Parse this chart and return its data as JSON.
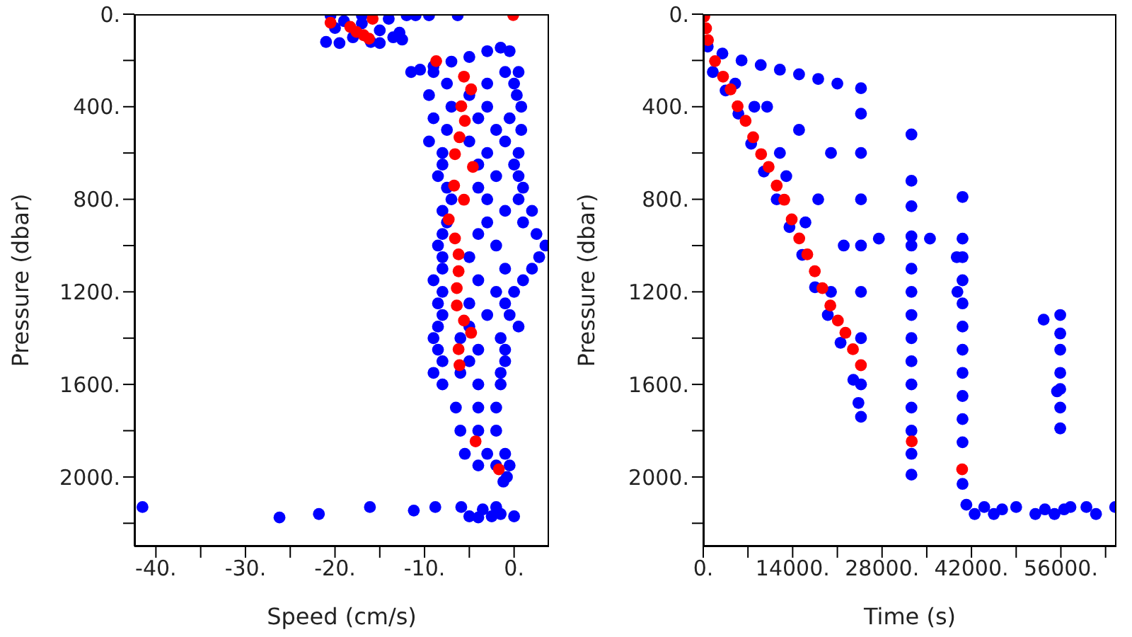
{
  "chart_data": [
    {
      "type": "scatter",
      "xlabel": "Speed (cm/s)",
      "ylabel": "Pressure (dbar)",
      "marker": "circle",
      "xlim": [
        -42.4,
        3.9
      ],
      "xticks": [
        {
          "value": -40,
          "label": "-40."
        },
        {
          "value": -35,
          "label": null
        },
        {
          "value": -30,
          "label": "-30."
        },
        {
          "value": -25,
          "label": null
        },
        {
          "value": -20,
          "label": "-20."
        },
        {
          "value": -15,
          "label": null
        },
        {
          "value": -10,
          "label": "-10."
        },
        {
          "value": -5,
          "label": null
        },
        {
          "value": 0,
          "label": "0."
        }
      ],
      "ylim": [
        2300,
        0
      ],
      "yticks": [
        {
          "value": 0,
          "label": "0."
        },
        {
          "value": 200,
          "label": null
        },
        {
          "value": 400,
          "label": "400."
        },
        {
          "value": 600,
          "label": null
        },
        {
          "value": 800,
          "label": "800."
        },
        {
          "value": 1000,
          "label": null
        },
        {
          "value": 1200,
          "label": "1200."
        },
        {
          "value": 1400,
          "label": null
        },
        {
          "value": 1600,
          "label": "1600."
        },
        {
          "value": 1800,
          "label": null
        },
        {
          "value": 2000,
          "label": "2000."
        },
        {
          "value": 2200,
          "label": null
        }
      ],
      "series": [
        {
          "color": "#0000ff",
          "x": [
            -21,
            -20,
            -19,
            -18,
            -17,
            -16,
            -15,
            -14,
            -13.5,
            -12.8,
            -20.5,
            -17,
            -12,
            -11,
            -9.5,
            -6.3,
            -19.5,
            -15,
            -12.5,
            -11.5,
            -10.5,
            -9,
            -7,
            -5,
            -3,
            -1.5,
            -0.5,
            -9,
            -1,
            0.5,
            -7.5,
            -3,
            0,
            -9.5,
            -5,
            0.3,
            -7,
            -3,
            0.8,
            -9,
            -4,
            -0.5,
            -7.5,
            -2,
            0.8,
            -9.5,
            -5,
            -1,
            -8,
            -3,
            0.5,
            -8,
            -4,
            0,
            -8.5,
            -2,
            0.5,
            -7.5,
            -4,
            1,
            -7,
            -3,
            0.5,
            -8,
            -1,
            2,
            -7.5,
            -3,
            1,
            -8,
            -4,
            2.5,
            -8.5,
            -2,
            3.5,
            -8,
            -5,
            2.8,
            -8,
            -1,
            2,
            -9,
            -4,
            1,
            -8,
            -2,
            0,
            -8.5,
            -5,
            -1,
            -8,
            -3,
            -0.5,
            -8.5,
            -5,
            0.5,
            -9,
            -6,
            -1.5,
            -8.5,
            -4,
            -1,
            -8,
            -5,
            -1,
            -9,
            -6,
            -1.5,
            -8,
            -4,
            -1.5,
            -6.5,
            -4,
            -2,
            -6,
            -4,
            -2,
            -5.5,
            -3,
            -1,
            -4,
            -2,
            -0.5,
            -1.2,
            -0.8,
            -41.5,
            -26.2,
            -21.8,
            -16.1,
            -11.2,
            -8.8,
            -5.9,
            -5,
            -4,
            -3.5,
            -2.5,
            -2,
            -1.5,
            0
          ],
          "values": [
            120,
            60,
            30,
            100,
            40,
            120,
            70,
            20,
            100,
            80,
            5,
            5,
            5,
            5,
            5,
            5,
            125,
            125,
            110,
            250,
            240,
            225,
            205,
            185,
            160,
            145,
            160,
            250,
            250,
            250,
            300,
            300,
            300,
            350,
            350,
            350,
            400,
            400,
            400,
            450,
            450,
            450,
            500,
            500,
            500,
            550,
            550,
            550,
            600,
            600,
            600,
            650,
            650,
            650,
            700,
            700,
            700,
            750,
            750,
            750,
            800,
            800,
            800,
            850,
            850,
            850,
            900,
            900,
            900,
            950,
            950,
            950,
            1000,
            1000,
            1000,
            1050,
            1050,
            1050,
            1100,
            1100,
            1100,
            1150,
            1150,
            1150,
            1200,
            1200,
            1200,
            1250,
            1250,
            1250,
            1300,
            1300,
            1300,
            1350,
            1350,
            1350,
            1400,
            1400,
            1400,
            1450,
            1450,
            1450,
            1500,
            1500,
            1500,
            1550,
            1550,
            1550,
            1600,
            1600,
            1600,
            1700,
            1700,
            1700,
            1800,
            1800,
            1800,
            1900,
            1900,
            1900,
            1950,
            1950,
            1950,
            2020,
            2000,
            2130,
            2175,
            2160,
            2130,
            2145,
            2130,
            2130,
            2170,
            2175,
            2140,
            2170,
            2130,
            2160,
            2170
          ]
        },
        {
          "color": "#ff0000",
          "x": [
            -20.5,
            -18.3,
            -17.6,
            -16.8,
            -16.2,
            -15.8,
            -0.1,
            -8.7,
            -5.6,
            -4.8,
            -5.9,
            -5.5,
            -6.1,
            -6.6,
            -4.6,
            -6.7,
            -5.6,
            -7.3,
            -6.6,
            -6.2,
            -6.2,
            -6.4,
            -6.4,
            -5.6,
            -4.8,
            -6.2,
            -6.1,
            -4.3,
            -1.7
          ],
          "values": [
            37,
            55,
            77,
            91,
            106,
            20,
            4,
            203,
            270,
            325,
            398,
            461,
            532,
            605,
            660,
            741,
            802,
            887,
            969,
            1038,
            1111,
            1184,
            1259,
            1324,
            1377,
            1448,
            1517,
            1846,
            1967
          ]
        }
      ]
    },
    {
      "type": "scatter",
      "xlabel": "Time (s)",
      "ylabel": "Pressure (dbar)",
      "marker": "circle",
      "xlim": [
        0,
        64700
      ],
      "xticks": [
        {
          "value": 0,
          "label": "0."
        },
        {
          "value": 7000,
          "label": null
        },
        {
          "value": 14000,
          "label": "14000."
        },
        {
          "value": 21000,
          "label": null
        },
        {
          "value": 28000,
          "label": "28000."
        },
        {
          "value": 35000,
          "label": null
        },
        {
          "value": 42000,
          "label": "42000."
        },
        {
          "value": 49000,
          "label": null
        },
        {
          "value": 56000,
          "label": "56000."
        },
        {
          "value": 63000,
          "label": null
        }
      ],
      "ylim": [
        2300,
        0
      ],
      "yticks": [
        {
          "value": 0,
          "label": "0."
        },
        {
          "value": 200,
          "label": null
        },
        {
          "value": 400,
          "label": "400."
        },
        {
          "value": 600,
          "label": null
        },
        {
          "value": 800,
          "label": "800."
        },
        {
          "value": 1000,
          "label": null
        },
        {
          "value": 1200,
          "label": "1200."
        },
        {
          "value": 1400,
          "label": null
        },
        {
          "value": 1600,
          "label": "1600."
        },
        {
          "value": 1800,
          "label": null
        },
        {
          "value": 2000,
          "label": "2000."
        },
        {
          "value": 2200,
          "label": null
        }
      ],
      "series": [
        {
          "color": "#0000ff",
          "x": [
            700,
            3000,
            6000,
            9000,
            12000,
            15000,
            18000,
            21000,
            24700,
            1500,
            3500,
            5500,
            7500,
            9500,
            11500,
            13500,
            15500,
            17500,
            19500,
            21500,
            23500,
            24700,
            24300,
            24700,
            24700,
            24700,
            24700,
            24700,
            24700,
            24700,
            10000,
            15000,
            20000,
            5000,
            12000,
            18000,
            22000,
            20000,
            16000,
            13000,
            8000,
            32600,
            32600,
            32600,
            32600,
            32600,
            32600,
            32600,
            32600,
            32600,
            32600,
            32600,
            32600,
            32600,
            32600,
            32600,
            27500,
            35500,
            40600,
            40600,
            40600,
            40600,
            40600,
            40600,
            40600,
            40600,
            40600,
            40600,
            40600,
            40600,
            39700,
            39800,
            55900,
            55900,
            55900,
            55900,
            55900,
            55900,
            55900,
            53300,
            55400,
            41200,
            42500,
            44000,
            45500,
            46800,
            49000,
            52000,
            53500,
            55000,
            56500,
            57500,
            60000,
            61500,
            64500
          ],
          "values": [
            140,
            170,
            200,
            220,
            240,
            260,
            280,
            300,
            320,
            250,
            330,
            430,
            560,
            680,
            800,
            920,
            1040,
            1180,
            1300,
            1420,
            1580,
            1740,
            1680,
            430,
            600,
            800,
            1000,
            1200,
            1400,
            1600,
            400,
            500,
            600,
            300,
            600,
            800,
            1000,
            1200,
            900,
            700,
            400,
            520,
            720,
            830,
            960,
            1000,
            1100,
            1200,
            1300,
            1400,
            1500,
            1600,
            1700,
            1800,
            1900,
            1990,
            970,
            970,
            790,
            970,
            1050,
            1150,
            1250,
            1350,
            1450,
            1550,
            1650,
            1750,
            1850,
            2030,
            1050,
            1200,
            1300,
            1380,
            1450,
            1550,
            1620,
            1700,
            1790,
            1320,
            1630,
            2120,
            2160,
            2130,
            2160,
            2140,
            2130,
            2160,
            2140,
            2160,
            2140,
            2130,
            2130,
            2160,
            2130
          ]
        },
        {
          "color": "#ff0000",
          "x": [
            150,
            440,
            740,
            1840,
            3100,
            4280,
            5380,
            6630,
            7810,
            9060,
            10240,
            11500,
            12680,
            13850,
            15030,
            16290,
            17470,
            18650,
            19900,
            21080,
            22260,
            23440,
            24690,
            32650,
            40540
          ],
          "values": [
            10,
            61,
            112,
            203,
            270,
            325,
            398,
            461,
            532,
            605,
            660,
            741,
            802,
            887,
            969,
            1038,
            1111,
            1184,
            1259,
            1324,
            1377,
            1448,
            1517,
            1846,
            1967
          ]
        }
      ]
    }
  ]
}
